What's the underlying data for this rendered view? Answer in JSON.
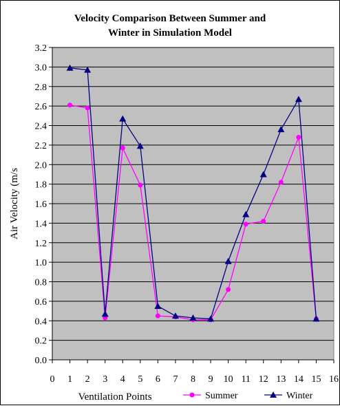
{
  "chart_data": {
    "type": "line",
    "title_lines": [
      "Velocity Comparison Between Summer and",
      "Winter in Simulation Model"
    ],
    "xlabel": "Ventilation Points",
    "ylabel": "Air Velocity (m/s",
    "xlim": [
      0,
      16
    ],
    "ylim": [
      0.0,
      3.2
    ],
    "x_ticks": [
      "0",
      "1",
      "2",
      "3",
      "4",
      "5",
      "6",
      "7",
      "8",
      "9",
      "10",
      "11",
      "12",
      "13",
      "14",
      "15",
      "16"
    ],
    "y_ticks": [
      "0.0",
      "0.2",
      "0.4",
      "0.6",
      "0.8",
      "1.0",
      "1.2",
      "1.4",
      "1.6",
      "1.8",
      "2.0",
      "2.2",
      "2.4",
      "2.6",
      "2.8",
      "3.0",
      "3.2"
    ],
    "grid": "horizontal",
    "legend_position": "bottom-right",
    "plot_background": "#c0c0c0",
    "x": [
      1,
      2,
      3,
      4,
      5,
      6,
      7,
      8,
      9,
      10,
      11,
      12,
      13,
      14,
      15
    ],
    "series": [
      {
        "name": "Summer",
        "color": "#ff00ff",
        "marker": "circle",
        "values": [
          2.61,
          2.58,
          0.43,
          2.17,
          1.79,
          0.45,
          0.44,
          0.41,
          0.41,
          0.72,
          1.39,
          1.42,
          1.82,
          2.28,
          0.42
        ]
      },
      {
        "name": "Winter",
        "color": "#000080",
        "marker": "triangle",
        "values": [
          2.99,
          2.97,
          0.47,
          2.47,
          2.19,
          0.55,
          0.45,
          0.43,
          0.42,
          1.01,
          1.49,
          1.9,
          2.36,
          2.67,
          0.42
        ]
      }
    ]
  }
}
